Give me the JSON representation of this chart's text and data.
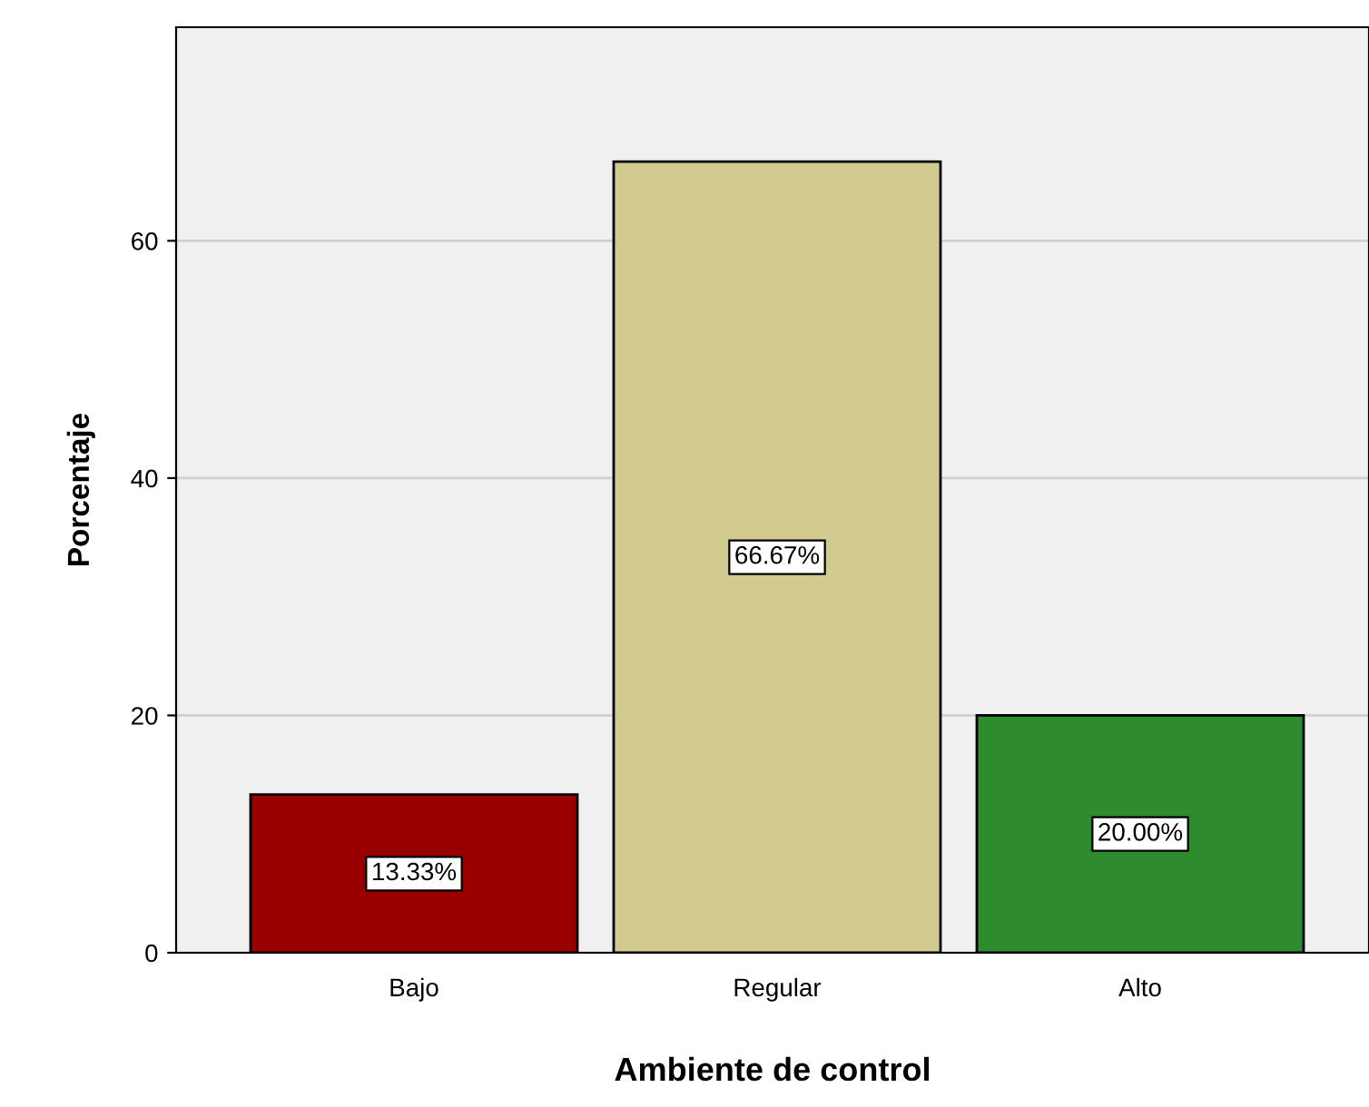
{
  "chart_data": {
    "type": "bar",
    "xlabel": "Ambiente de control",
    "ylabel": "Porcentaje",
    "categories": [
      "Bajo",
      "Regular",
      "Alto"
    ],
    "values": [
      13.33,
      66.67,
      20.0
    ],
    "colors": [
      "#990000",
      "#d2cb8f",
      "#2e8b2e"
    ],
    "value_labels": [
      "13.33%",
      "66.67%",
      "20.00%"
    ],
    "ylim": [
      0,
      78
    ],
    "yticks": [
      0,
      20,
      40,
      60
    ],
    "grid": "y",
    "legend": false
  }
}
